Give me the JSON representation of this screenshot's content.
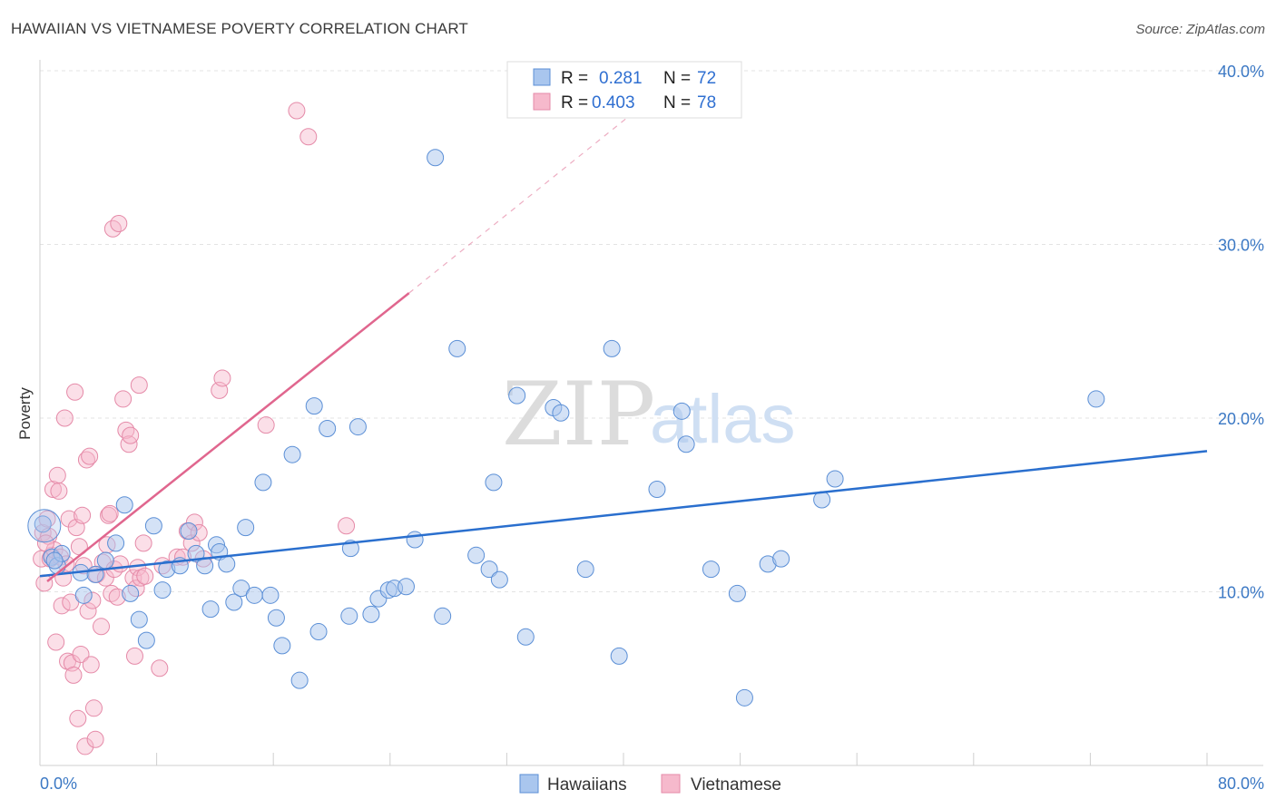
{
  "title": "HAWAIIAN VS VIETNAMESE POVERTY CORRELATION CHART",
  "source": "Source: ZipAtlas.com",
  "watermark": {
    "left": "ZIP",
    "right": "atlas"
  },
  "legend_top": [
    {
      "r_label": "R =",
      "r_value": "0.281",
      "n_label": "N =",
      "n_value": "72"
    },
    {
      "r_label": "R =",
      "r_value": "0.403",
      "n_label": "N =",
      "n_value": "78"
    }
  ],
  "legend_bottom": [
    "Hawaiians",
    "Vietnamese"
  ],
  "colors": {
    "hawaiians_fill": "#a9c6ee",
    "hawaiians_stroke": "#5b8fd6",
    "hawaiians_line": "#2a6fce",
    "vietnamese_fill": "#f6b9cc",
    "vietnamese_stroke": "#e58aa8",
    "vietnamese_line": "#e0668e",
    "grid": "#e3e3e3",
    "tick_label": "#3b78c4"
  },
  "chart_data": {
    "type": "scatter",
    "title": "HAWAIIAN VS VIETNAMESE POVERTY CORRELATION CHART",
    "xlabel": "",
    "ylabel": "Poverty",
    "xlim": [
      0,
      80
    ],
    "ylim": [
      0,
      40
    ],
    "x_tick_labels": [
      "0.0%",
      "80.0%"
    ],
    "y_tick_labels": [
      "10.0%",
      "20.0%",
      "30.0%",
      "40.0%"
    ],
    "y_ticks": [
      10,
      20,
      30,
      40
    ],
    "grid": true,
    "legend_position": "top-center",
    "series": [
      {
        "name": "Hawaiians",
        "r": 0.281,
        "n": 72,
        "trend": {
          "x": [
            0,
            80
          ],
          "y": [
            10.9,
            18.1
          ]
        },
        "points": [
          [
            0.2,
            13.9
          ],
          [
            0.8,
            12.0
          ],
          [
            1.2,
            11.5
          ],
          [
            1.5,
            12.2
          ],
          [
            2.8,
            11.1
          ],
          [
            3.0,
            9.8
          ],
          [
            3.8,
            11.0
          ],
          [
            4.5,
            11.8
          ],
          [
            5.2,
            12.8
          ],
          [
            5.8,
            15.0
          ],
          [
            6.2,
            9.9
          ],
          [
            6.8,
            8.4
          ],
          [
            7.3,
            7.2
          ],
          [
            7.8,
            13.8
          ],
          [
            8.4,
            10.1
          ],
          [
            8.7,
            11.3
          ],
          [
            9.6,
            11.5
          ],
          [
            10.2,
            13.5
          ],
          [
            10.7,
            12.2
          ],
          [
            11.3,
            11.5
          ],
          [
            11.7,
            9.0
          ],
          [
            12.1,
            12.7
          ],
          [
            12.3,
            12.3
          ],
          [
            12.8,
            11.6
          ],
          [
            13.3,
            9.4
          ],
          [
            13.8,
            10.2
          ],
          [
            14.1,
            13.7
          ],
          [
            14.7,
            9.8
          ],
          [
            15.3,
            16.3
          ],
          [
            15.8,
            9.8
          ],
          [
            16.2,
            8.5
          ],
          [
            16.6,
            6.9
          ],
          [
            17.3,
            17.9
          ],
          [
            17.8,
            4.9
          ],
          [
            18.8,
            20.7
          ],
          [
            19.1,
            7.7
          ],
          [
            19.7,
            19.4
          ],
          [
            21.2,
            8.6
          ],
          [
            21.3,
            12.5
          ],
          [
            21.8,
            19.5
          ],
          [
            22.7,
            8.7
          ],
          [
            23.2,
            9.6
          ],
          [
            23.9,
            10.1
          ],
          [
            24.3,
            10.2
          ],
          [
            25.1,
            10.3
          ],
          [
            25.7,
            13.0
          ],
          [
            27.1,
            35.0
          ],
          [
            27.6,
            8.6
          ],
          [
            28.6,
            24.0
          ],
          [
            29.9,
            12.1
          ],
          [
            30.8,
            11.3
          ],
          [
            31.1,
            16.3
          ],
          [
            31.5,
            10.7
          ],
          [
            32.7,
            21.3
          ],
          [
            33.3,
            7.4
          ],
          [
            35.2,
            20.6
          ],
          [
            35.7,
            20.3
          ],
          [
            37.4,
            11.3
          ],
          [
            39.2,
            24.0
          ],
          [
            39.7,
            6.3
          ],
          [
            42.3,
            15.9
          ],
          [
            44.0,
            20.4
          ],
          [
            44.3,
            18.5
          ],
          [
            46.0,
            11.3
          ],
          [
            47.8,
            9.9
          ],
          [
            48.3,
            3.9
          ],
          [
            49.9,
            11.6
          ],
          [
            50.8,
            11.9
          ],
          [
            53.6,
            15.3
          ],
          [
            54.5,
            16.5
          ],
          [
            72.4,
            21.1
          ],
          [
            1.0,
            11.8
          ]
        ]
      },
      {
        "name": "Vietnamese",
        "r": 0.403,
        "n": 78,
        "trend": {
          "x": [
            0.5,
            25.3
          ],
          "y": [
            10.6,
            27.2
          ]
        },
        "trend_dashed": {
          "x": [
            25.3,
            45
          ],
          "y": [
            27.2,
            40.5
          ]
        },
        "points": [
          [
            0.1,
            11.9
          ],
          [
            0.2,
            13.4
          ],
          [
            0.3,
            10.5
          ],
          [
            0.5,
            14.2
          ],
          [
            0.6,
            13.2
          ],
          [
            0.7,
            11.9
          ],
          [
            0.8,
            12.1
          ],
          [
            0.9,
            15.9
          ],
          [
            1.0,
            12.4
          ],
          [
            1.1,
            7.1
          ],
          [
            1.2,
            16.7
          ],
          [
            1.3,
            15.8
          ],
          [
            1.4,
            12.0
          ],
          [
            1.5,
            9.2
          ],
          [
            1.6,
            10.8
          ],
          [
            1.7,
            20.0
          ],
          [
            1.8,
            11.6
          ],
          [
            1.9,
            6.0
          ],
          [
            2.0,
            14.2
          ],
          [
            2.2,
            5.9
          ],
          [
            2.3,
            5.2
          ],
          [
            2.4,
            21.5
          ],
          [
            2.5,
            13.7
          ],
          [
            2.6,
            2.7
          ],
          [
            2.7,
            12.6
          ],
          [
            2.8,
            6.4
          ],
          [
            2.9,
            14.4
          ],
          [
            3.0,
            11.5
          ],
          [
            3.1,
            1.1
          ],
          [
            3.2,
            17.6
          ],
          [
            3.3,
            8.9
          ],
          [
            3.4,
            17.8
          ],
          [
            3.5,
            5.8
          ],
          [
            3.6,
            9.5
          ],
          [
            3.7,
            3.3
          ],
          [
            3.8,
            1.5
          ],
          [
            3.9,
            11.0
          ],
          [
            4.2,
            8.0
          ],
          [
            4.3,
            11.7
          ],
          [
            4.5,
            10.8
          ],
          [
            4.6,
            12.7
          ],
          [
            4.7,
            14.4
          ],
          [
            4.8,
            14.5
          ],
          [
            4.9,
            9.9
          ],
          [
            5.0,
            30.9
          ],
          [
            5.1,
            11.3
          ],
          [
            5.3,
            9.7
          ],
          [
            5.4,
            31.2
          ],
          [
            5.5,
            11.6
          ],
          [
            5.7,
            21.1
          ],
          [
            5.9,
            19.3
          ],
          [
            6.1,
            18.5
          ],
          [
            6.2,
            19.0
          ],
          [
            6.4,
            10.8
          ],
          [
            6.5,
            6.3
          ],
          [
            6.6,
            10.2
          ],
          [
            6.7,
            11.4
          ],
          [
            6.8,
            21.9
          ],
          [
            6.9,
            10.8
          ],
          [
            7.1,
            12.8
          ],
          [
            7.2,
            10.9
          ],
          [
            8.2,
            5.6
          ],
          [
            8.4,
            11.5
          ],
          [
            9.4,
            12.0
          ],
          [
            9.8,
            12.0
          ],
          [
            10.1,
            13.5
          ],
          [
            10.4,
            12.8
          ],
          [
            10.6,
            14.0
          ],
          [
            10.9,
            13.4
          ],
          [
            11.2,
            11.9
          ],
          [
            12.3,
            21.6
          ],
          [
            12.5,
            22.3
          ],
          [
            15.5,
            19.6
          ],
          [
            17.6,
            37.7
          ],
          [
            18.4,
            36.2
          ],
          [
            21.0,
            13.8
          ],
          [
            0.4,
            12.8
          ],
          [
            2.1,
            9.4
          ]
        ]
      }
    ]
  }
}
